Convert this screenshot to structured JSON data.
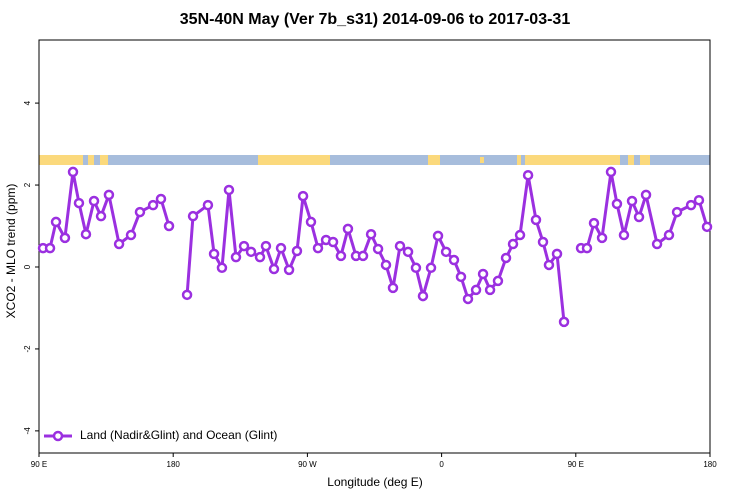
{
  "chart_data": {
    "type": "line",
    "title": "35N-40N May (Ver 7b_s31)   2014-09-06 to 2017-03-31",
    "x_label": "Longitude (deg E)",
    "y_label": "XCO2 - MLO trend (ppm)",
    "xlim": [
      90,
      540
    ],
    "ylim": [
      -4.54,
      5.54
    ],
    "xticks": [
      {
        "value": 90,
        "label": "90 E"
      },
      {
        "value": 180,
        "label": "180"
      },
      {
        "value": 270,
        "label": "90 W"
      },
      {
        "value": 360,
        "label": "0"
      },
      {
        "value": 450,
        "label": "90 E"
      },
      {
        "value": 540,
        "label": "180"
      }
    ],
    "yticks": [
      -4,
      -2,
      0,
      2,
      4
    ],
    "legend_position": "bottom-left",
    "series": [
      {
        "name": "Land (Nadir&Glint) and Ocean (Glint)",
        "color": "#9b30e0",
        "x": [
          92.7,
          97.4,
          101.4,
          107.4,
          112.8,
          116.8,
          121.5,
          126.9,
          131.6,
          136.9,
          143.7,
          151.7,
          157.7,
          166.5,
          171.8,
          177.2,
          183,
          189.3,
          193.3,
          203.3,
          207.4,
          212.7,
          217.4,
          222.1,
          227.5,
          232.2,
          238.2,
          242.2,
          247.6,
          252.3,
          257.7,
          263.0,
          267.1,
          272.4,
          277.1,
          282.5,
          287.2,
          292.5,
          297.2,
          302.6,
          307.3,
          312.7,
          317.4,
          322.7,
          327.4,
          332.1,
          337.5,
          342.8,
          347.5,
          352.9,
          357.6,
          363.0,
          368.3,
          373.0,
          377.7,
          383.1,
          387.8,
          392.5,
          397.8,
          403.2,
          407.9,
          412.6,
          418.0,
          423.3,
          428.0,
          432.0,
          437.4,
          442.1,
          448,
          453.5,
          457.5,
          462.2,
          467.6,
          473.6,
          477.6,
          482.3,
          487.7,
          492.4,
          497.1,
          504.5,
          512.5,
          517.9,
          527.3,
          532.6,
          538.0
        ],
        "values": [
          0.46,
          0.46,
          1.1,
          0.71,
          2.32,
          1.56,
          0.8,
          1.61,
          1.24,
          1.76,
          0.56,
          0.78,
          1.34,
          1.51,
          1.66,
          1.0,
          null,
          -0.68,
          1.24,
          1.51,
          0.32,
          -0.02,
          1.88,
          0.24,
          0.51,
          0.37,
          0.24,
          0.51,
          -0.05,
          0.46,
          -0.07,
          0.39,
          1.73,
          1.1,
          0.46,
          0.66,
          0.61,
          0.27,
          0.93,
          0.27,
          0.27,
          0.8,
          0.44,
          0.05,
          -0.51,
          0.51,
          0.37,
          -0.02,
          -0.71,
          -0.02,
          0.76,
          0.37,
          0.17,
          -0.24,
          -0.78,
          -0.56,
          -0.17,
          -0.56,
          -0.34,
          0.22,
          0.56,
          0.78,
          2.24,
          1.15,
          0.61,
          0.05,
          0.32,
          -1.34,
          null,
          0.46,
          0.46,
          1.07,
          0.71,
          2.32,
          1.54,
          0.78,
          1.61,
          1.22,
          1.76,
          0.56,
          0.78,
          1.34,
          1.51,
          1.63,
          0.98
        ]
      }
    ]
  }
}
